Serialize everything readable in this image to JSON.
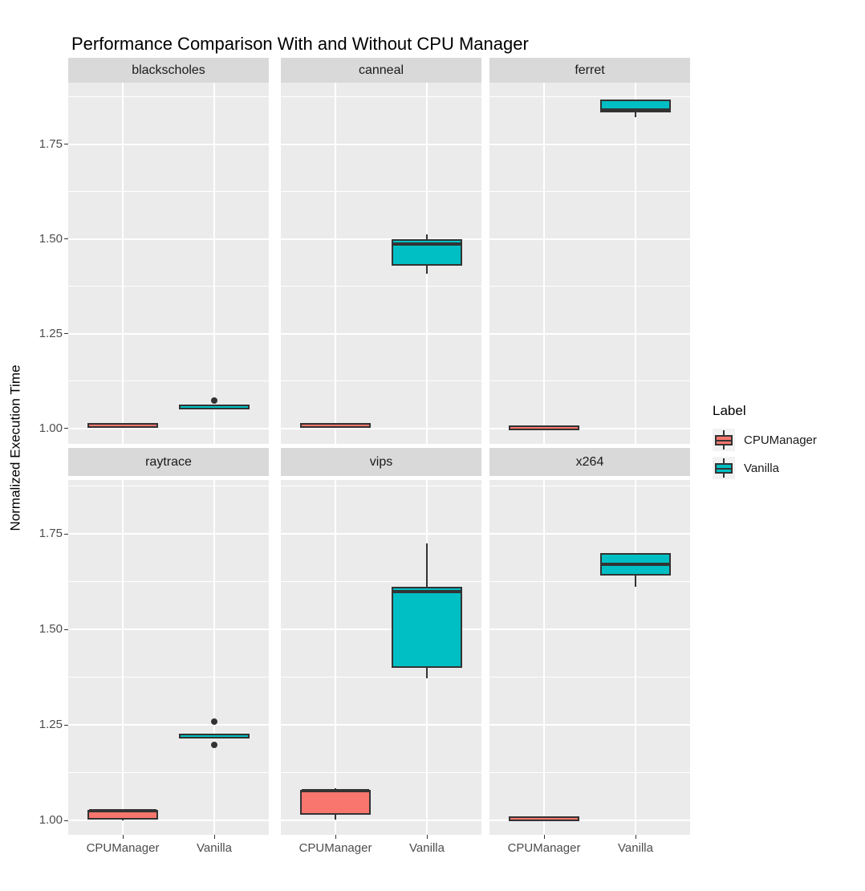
{
  "title": "Performance Comparison With and Without CPU Manager",
  "y_axis": {
    "title": "Normalized Execution Time",
    "tick_labels": [
      "1.00",
      "1.25",
      "1.50",
      "1.75"
    ]
  },
  "x_axis": {
    "categories": [
      "CPUManager",
      "Vanilla"
    ]
  },
  "legend": {
    "title": "Label",
    "entries": [
      {
        "label": "CPUManager",
        "color": "#F8766D"
      },
      {
        "label": "Vanilla",
        "color": "#00BFC4"
      }
    ]
  },
  "colors": {
    "panel_background": "#EBEBEB",
    "strip_background": "#D9D9D9",
    "gridline": "#FFFFFF",
    "box_outline": "#333333",
    "tick_text": "#4D4D4D",
    "cpumanager_fill": "#F8766D",
    "vanilla_fill": "#00BFC4"
  },
  "chart_data": {
    "type": "boxplot",
    "title": "Performance Comparison With and Without CPU Manager",
    "ylabel": "Normalized Execution Time",
    "xlabel": "",
    "categories": [
      "CPUManager",
      "Vanilla"
    ],
    "y_major_ticks": [
      1.0,
      1.25,
      1.5,
      1.75
    ],
    "y_minor_ticks": [
      1.125,
      1.375,
      1.625,
      1.875
    ],
    "ylim": [
      0.95,
      1.91
    ],
    "grid": "white-on-grey",
    "legend_position": "right",
    "facets": [
      {
        "label": "blackscholes",
        "row": 0,
        "col": 0,
        "groups": [
          {
            "group": "CPUManager",
            "whisker_low": 1.004,
            "q1": 1.004,
            "median": 1.007,
            "q3": 1.01,
            "whisker_high": 1.01,
            "outliers": []
          },
          {
            "group": "Vanilla",
            "whisker_low": 1.054,
            "q1": 1.054,
            "median": 1.057,
            "q3": 1.06,
            "whisker_high": 1.06,
            "outliers": [
              1.074
            ]
          }
        ]
      },
      {
        "label": "canneal",
        "row": 0,
        "col": 1,
        "groups": [
          {
            "group": "CPUManager",
            "whisker_low": 1.0,
            "q1": 1.003,
            "median": 1.006,
            "q3": 1.01,
            "whisker_high": 1.013,
            "outliers": []
          },
          {
            "group": "Vanilla",
            "whisker_low": 1.407,
            "q1": 1.428,
            "median": 1.487,
            "q3": 1.5,
            "whisker_high": 1.512,
            "outliers": []
          }
        ]
      },
      {
        "label": "ferret",
        "row": 0,
        "col": 2,
        "groups": [
          {
            "group": "CPUManager",
            "whisker_low": 0.999,
            "q1": 0.999,
            "median": 1.002,
            "q3": 1.005,
            "whisker_high": 1.005,
            "outliers": []
          },
          {
            "group": "Vanilla",
            "whisker_low": 1.822,
            "q1": 1.833,
            "median": 1.84,
            "q3": 1.868,
            "whisker_high": 1.868,
            "outliers": []
          }
        ]
      },
      {
        "label": "raytrace",
        "row": 1,
        "col": 0,
        "groups": [
          {
            "group": "CPUManager",
            "whisker_low": 1.0,
            "q1": 1.003,
            "median": 1.026,
            "q3": 1.028,
            "whisker_high": 1.028,
            "outliers": []
          },
          {
            "group": "Vanilla",
            "whisker_low": 1.217,
            "q1": 1.217,
            "median": 1.22,
            "q3": 1.224,
            "whisker_high": 1.224,
            "outliers": [
              1.258,
              1.197
            ]
          }
        ]
      },
      {
        "label": "vips",
        "row": 1,
        "col": 1,
        "groups": [
          {
            "group": "CPUManager",
            "whisker_low": 1.002,
            "q1": 1.015,
            "median": 1.078,
            "q3": 1.08,
            "whisker_high": 1.085,
            "outliers": []
          },
          {
            "group": "Vanilla",
            "whisker_low": 1.372,
            "q1": 1.4,
            "median": 1.598,
            "q3": 1.612,
            "whisker_high": 1.725,
            "outliers": []
          }
        ]
      },
      {
        "label": "x264",
        "row": 1,
        "col": 2,
        "groups": [
          {
            "group": "CPUManager",
            "whisker_low": 1.002,
            "q1": 1.002,
            "median": 1.005,
            "q3": 1.008,
            "whisker_high": 1.008,
            "outliers": []
          },
          {
            "group": "Vanilla",
            "whisker_low": 1.612,
            "q1": 1.64,
            "median": 1.67,
            "q3": 1.7,
            "whisker_high": 1.7,
            "outliers": []
          }
        ]
      }
    ]
  }
}
